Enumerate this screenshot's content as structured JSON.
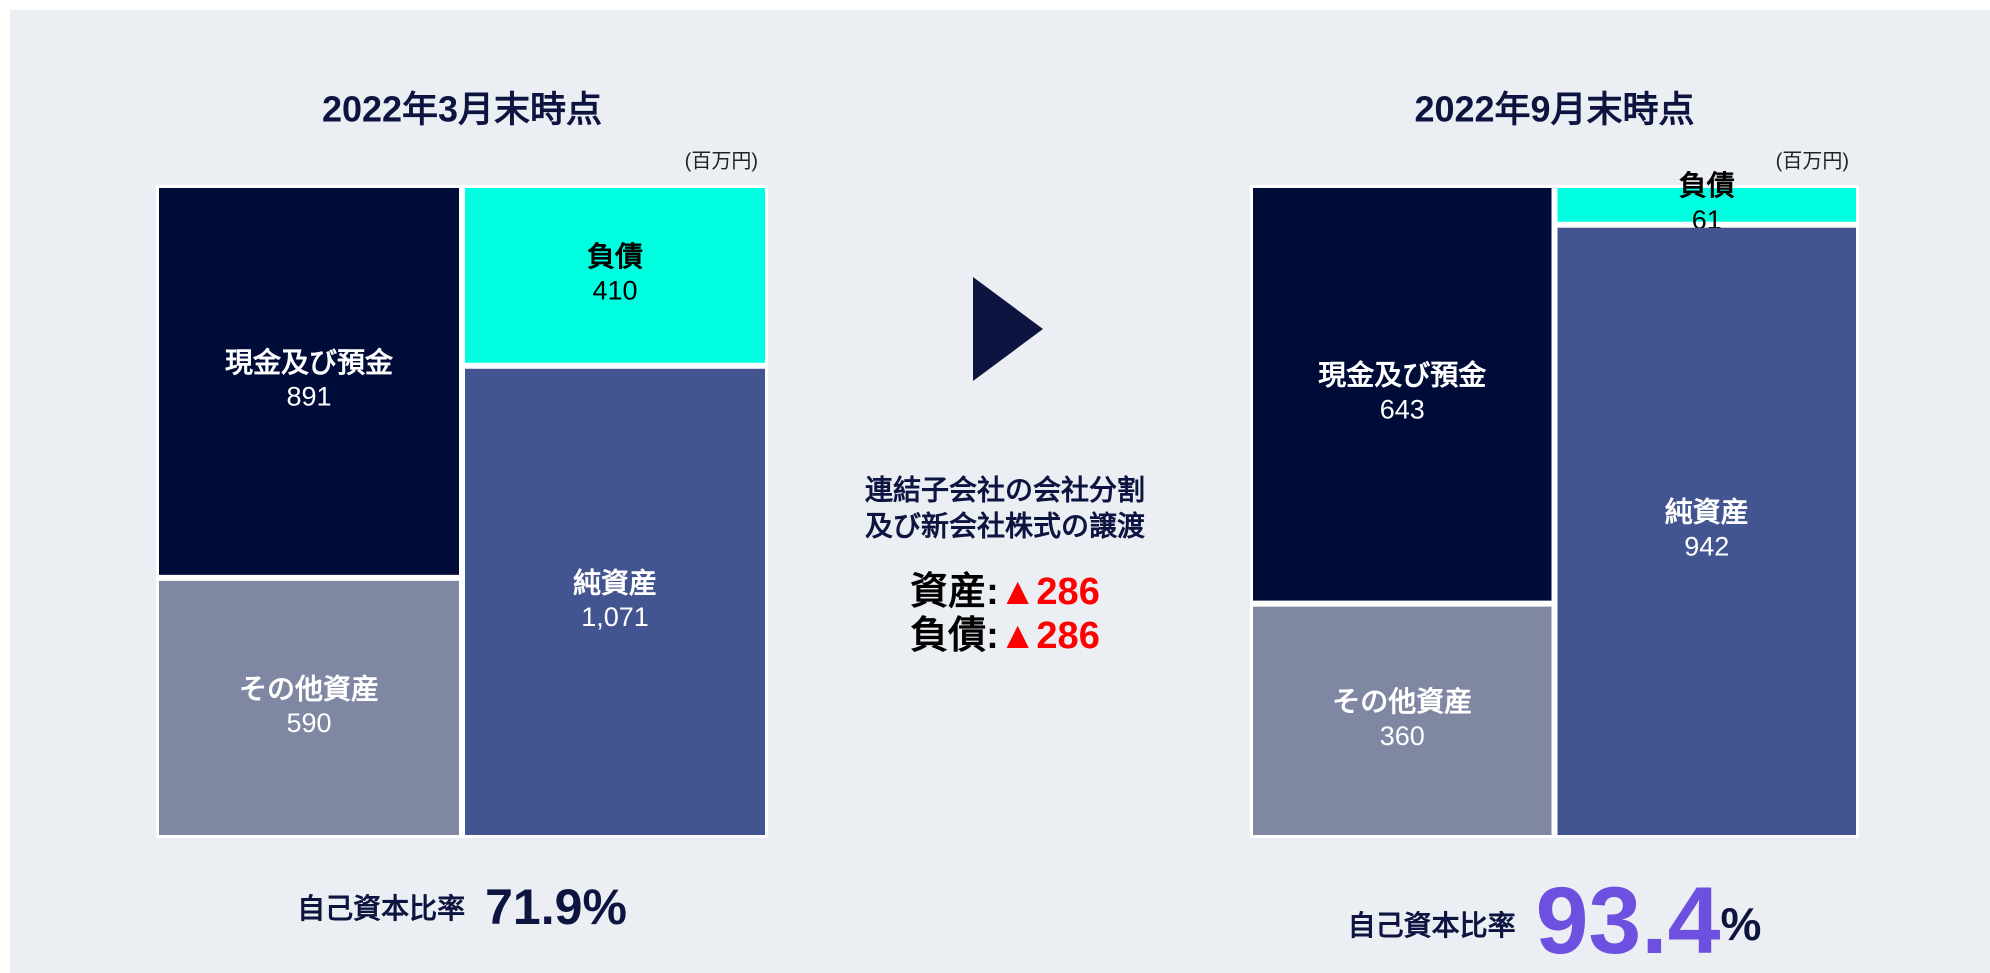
{
  "chart_data": [
    {
      "type": "balance-sheet",
      "title": "2022年3月末時点",
      "unit_note": "(百万円)",
      "columns": [
        {
          "series": [
            {
              "name": "現金及び預金",
              "value": 891,
              "color": "#000c38",
              "text_color": "#ffffff"
            },
            {
              "name": "その他資産",
              "value": 590,
              "color": "#8087a2",
              "text_color": "#ffffff"
            }
          ]
        },
        {
          "series": [
            {
              "name": "負債",
              "value": 410,
              "color": "#00ffe1",
              "text_color": "#000000"
            },
            {
              "name": "純資産",
              "value": 1071,
              "value_label": "1,071",
              "color": "#425591",
              "text_color": "#ffffff"
            }
          ]
        }
      ],
      "ratio": {
        "label": "自己資本比率",
        "value": 71.9,
        "unit": "%",
        "color": "#0d1440",
        "size": "large"
      }
    },
    {
      "type": "balance-sheet",
      "title": "2022年9月末時点",
      "unit_note": "(百万円)",
      "columns": [
        {
          "series": [
            {
              "name": "現金及び預金",
              "value": 643,
              "color": "#000c38",
              "text_color": "#ffffff"
            },
            {
              "name": "その他資産",
              "value": 360,
              "color": "#8087a2",
              "text_color": "#ffffff"
            }
          ]
        },
        {
          "series": [
            {
              "name": "負債",
              "value": 61,
              "color": "#00ffe1",
              "text_color": "#000000"
            },
            {
              "name": "純資産",
              "value": 942,
              "color": "#425591",
              "text_color": "#ffffff"
            }
          ]
        }
      ],
      "ratio": {
        "label": "自己資本比率",
        "value": 93.4,
        "unit": "%",
        "color": "#6e50e0",
        "size": "xlarge"
      }
    }
  ],
  "annotation": {
    "lines": [
      "連結子会社の会社分割",
      "及び新会社株式の譲渡"
    ],
    "changes": [
      {
        "name": "資産:",
        "value": -286,
        "value_label": "▲286"
      },
      {
        "name": "負債:",
        "value": -286,
        "value_label": "▲286"
      }
    ]
  }
}
